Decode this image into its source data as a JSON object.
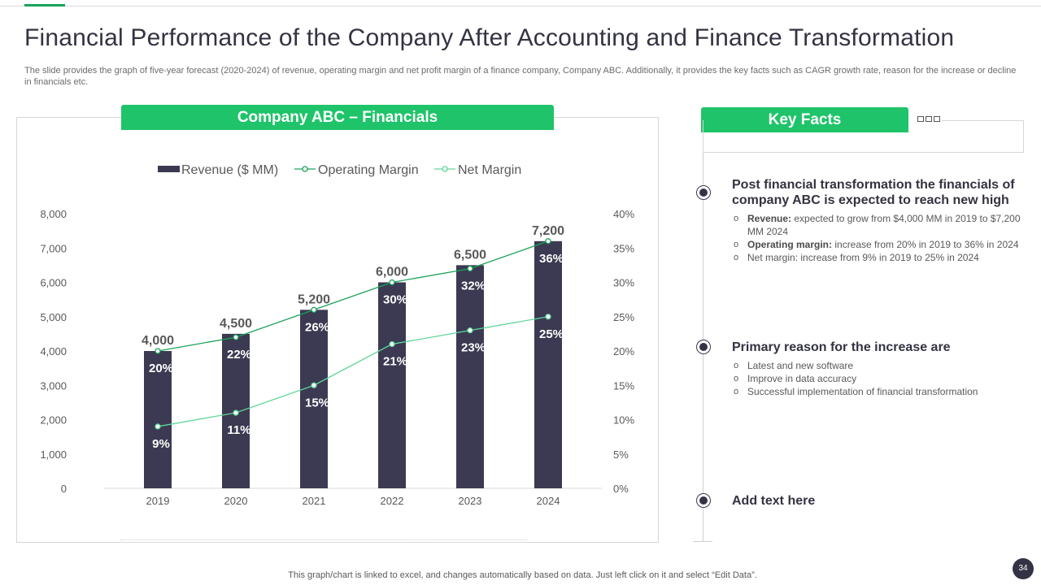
{
  "slide": {
    "title": "Financial Performance of the Company After Accounting and Finance Transformation",
    "subtitle": "The slide provides the graph of five-year forecast (2020-2024) of revenue, operating margin and net profit margin of a finance company, Company ABC. Additionally, it provides the key facts such as CAGR growth rate, reason for the increase or decline in financials etc.",
    "footer_note": "This graph/chart is linked to excel, and changes automatically based on data. Just left click on it and select “Edit Data”.",
    "page_number": "34"
  },
  "chart_section": {
    "header": "Company ABC – Financials"
  },
  "chart_data": {
    "type": "bar",
    "title": "Company ABC – Financials",
    "categories": [
      "2019",
      "2020",
      "2021",
      "2022",
      "2023",
      "2024"
    ],
    "series": [
      {
        "name": "Revenue ($ MM)",
        "type": "bar",
        "axis": "left",
        "values": [
          4000,
          4500,
          5200,
          6000,
          6500,
          7200
        ],
        "labels": [
          "4,000",
          "4,500",
          "5,200",
          "6,000",
          "6,500",
          "7,200"
        ],
        "color": "#3b3a52"
      },
      {
        "name": "Operating Margin",
        "type": "line",
        "axis": "right",
        "values": [
          20,
          22,
          26,
          30,
          32,
          36
        ],
        "labels": [
          "20%",
          "22%",
          "26%",
          "30%",
          "32%",
          "36%"
        ],
        "color": "#1aa35a"
      },
      {
        "name": "Net Margin",
        "type": "line",
        "axis": "right",
        "values": [
          9,
          11,
          15,
          21,
          23,
          25
        ],
        "labels": [
          "9%",
          "11%",
          "15%",
          "21%",
          "23%",
          "25%"
        ],
        "color": "#5fd69a"
      }
    ],
    "y_left": {
      "min": 0,
      "max": 8000,
      "ticks": [
        "0",
        "1,000",
        "2,000",
        "3,000",
        "4,000",
        "5,000",
        "6,000",
        "7,000",
        "8,000"
      ]
    },
    "y_right": {
      "min": 0,
      "max": 40,
      "ticks": [
        "0%",
        "5%",
        "10%",
        "15%",
        "20%",
        "25%",
        "30%",
        "35%",
        "40%"
      ]
    },
    "legend_position": "top",
    "grid": false
  },
  "key_facts": {
    "header": "Key Facts",
    "items": [
      {
        "heading": "Post financial transformation the financials of company ABC is expected to reach new high",
        "points": [
          {
            "label": "Revenue:",
            "text": " expected to grow from $4,000 MM in 2019 to $7,200 MM 2024"
          },
          {
            "label": "Operating margin:",
            "text": " increase from 20% in 2019 to 36% in 2024"
          },
          {
            "label": "",
            "text": "Net margin: increase from 9% in 2019 to 25% in 2024"
          }
        ]
      },
      {
        "heading": "Primary reason for the increase are",
        "points": [
          {
            "label": "",
            "text": "Latest and new software"
          },
          {
            "label": "",
            "text": "Improve  in data accuracy"
          },
          {
            "label": "",
            "text": "Successful implementation of financial transformation"
          }
        ]
      },
      {
        "heading": "Add text here",
        "points": []
      }
    ]
  }
}
